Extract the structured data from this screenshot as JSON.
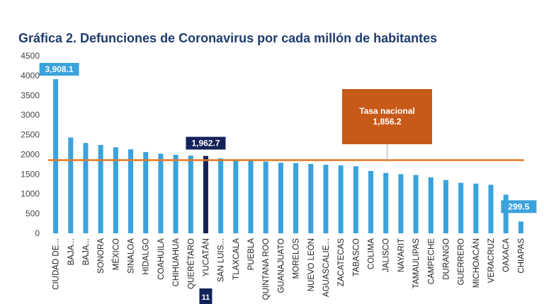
{
  "chart_data": {
    "type": "bar",
    "title": "Gráfica 2. Defunciones de Coronavirus por cada millón de habitantes",
    "xlabel": "",
    "ylabel": "",
    "ylim": [
      0,
      4500
    ],
    "yticks": [
      0,
      500,
      1000,
      1500,
      2000,
      2500,
      3000,
      3500,
      4000,
      4500
    ],
    "grid": false,
    "categories": [
      "CIUDAD DE...",
      "BAJA...",
      "BAJA...",
      "SONORA",
      "MÉXICO",
      "SINALOA",
      "HIDALGO",
      "COAHUILA",
      "CHIHUAHUA",
      "QUERÉTARO",
      "YUCATÁN",
      "SAN LUIS...",
      "TLAXCALA",
      "PUEBLA",
      "QUINTANA ROO",
      "GUANAJUATO",
      "MORELOS",
      "NUEVO LEÓN",
      "AGUASCALIE...",
      "ZACATECAS",
      "TABASCO",
      "COLIMA",
      "JALISCO",
      "NAYARIT",
      "TAMAULIPAS",
      "CAMPECHE",
      "DURANGO",
      "GUERRERO",
      "MICHOACÁN",
      "VERACRUZ",
      "OAXACA",
      "CHIAPAS"
    ],
    "values": [
      3908.1,
      2430,
      2290,
      2240,
      2180,
      2130,
      2060,
      2020,
      1990,
      1970,
      1962.7,
      1900,
      1860,
      1840,
      1820,
      1790,
      1780,
      1760,
      1740,
      1720,
      1700,
      1580,
      1530,
      1500,
      1480,
      1420,
      1350,
      1280,
      1260,
      1230,
      980,
      299.5
    ],
    "bar_colors": {
      "default": "#3aa2dc",
      "highlight": "#14235a"
    },
    "highlight_index": 10,
    "data_labels": [
      {
        "index": 0,
        "text": "3,908.1"
      },
      {
        "index": 10,
        "text": "1,962.7"
      },
      {
        "index": 31,
        "text": "299.5"
      }
    ],
    "reference_line": {
      "value": 1856.2,
      "label": "Tasa nacional",
      "value_text": "1,856.2",
      "color": "#e87722",
      "box_color": "#c85a19"
    },
    "badge": "11"
  }
}
